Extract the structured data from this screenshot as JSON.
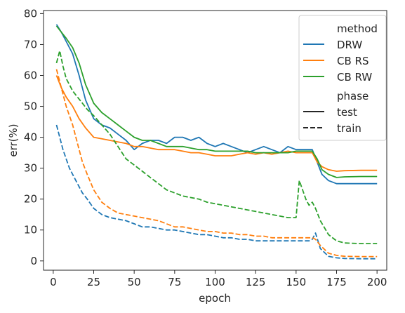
{
  "chart_data": {
    "type": "line",
    "xlabel": "epoch",
    "ylabel": "err(%)",
    "xlim": [
      -6,
      206
    ],
    "ylim": [
      -3,
      81
    ],
    "xticks": [
      0,
      25,
      50,
      75,
      100,
      125,
      150,
      175,
      200
    ],
    "yticks": [
      0,
      10,
      20,
      30,
      40,
      50,
      60,
      70,
      80
    ],
    "grid": false,
    "legend": {
      "placement": "top-right",
      "hue_title": "method",
      "style_title": "phase",
      "methods": [
        {
          "name": "DRW",
          "color": "#1f77b4"
        },
        {
          "name": "CB RS",
          "color": "#ff7f0e"
        },
        {
          "name": "CB RW",
          "color": "#2ca02c"
        }
      ],
      "phases": [
        {
          "name": "test",
          "dash": "solid"
        },
        {
          "name": "train",
          "dash": "dashed"
        }
      ]
    },
    "series": [
      {
        "method": "DRW",
        "phase": "test",
        "color": "#1f77b4",
        "dash": "solid",
        "x": [
          2,
          5,
          8,
          12,
          16,
          20,
          25,
          30,
          35,
          40,
          45,
          50,
          55,
          60,
          65,
          70,
          75,
          80,
          85,
          90,
          95,
          100,
          105,
          110,
          115,
          120,
          125,
          130,
          135,
          140,
          145,
          150,
          155,
          160,
          163,
          166,
          170,
          175,
          180,
          190,
          200
        ],
        "y": [
          76.5,
          74,
          71,
          67,
          60,
          52,
          46,
          44,
          43,
          41,
          39,
          36,
          38,
          39,
          39,
          38,
          40,
          40,
          39,
          40,
          38,
          37,
          38,
          37,
          36,
          35,
          36,
          37,
          36,
          35,
          37,
          36,
          36,
          36,
          32,
          28,
          26,
          25,
          25,
          25,
          25
        ]
      },
      {
        "method": "CB RS",
        "phase": "test",
        "color": "#ff7f0e",
        "dash": "solid",
        "x": [
          2,
          5,
          8,
          12,
          16,
          20,
          25,
          30,
          35,
          40,
          45,
          50,
          55,
          60,
          65,
          70,
          75,
          80,
          85,
          90,
          95,
          100,
          105,
          110,
          115,
          120,
          125,
          130,
          135,
          140,
          145,
          150,
          155,
          160,
          163,
          166,
          170,
          175,
          180,
          190,
          200
        ],
        "y": [
          60,
          56,
          53,
          50,
          46,
          43,
          40,
          39.5,
          39,
          38.5,
          38,
          37,
          37,
          36.5,
          36,
          36,
          36,
          35.5,
          35,
          35,
          34.5,
          34,
          34,
          34,
          34.5,
          35,
          34.5,
          35,
          34.5,
          35,
          35.5,
          35,
          35,
          35,
          32,
          30.5,
          29.5,
          29,
          29.2,
          29.3,
          29.3
        ]
      },
      {
        "method": "CB RW",
        "phase": "test",
        "color": "#2ca02c",
        "dash": "solid",
        "x": [
          2,
          5,
          8,
          12,
          16,
          20,
          25,
          30,
          35,
          40,
          45,
          50,
          55,
          60,
          65,
          70,
          75,
          80,
          85,
          90,
          95,
          100,
          105,
          110,
          115,
          120,
          125,
          130,
          135,
          140,
          145,
          150,
          155,
          160,
          163,
          166,
          170,
          175,
          180,
          190,
          200
        ],
        "y": [
          76,
          74,
          72,
          69,
          64,
          57,
          51,
          48,
          46,
          44,
          42,
          40,
          39,
          39,
          38,
          37,
          37,
          37,
          36.5,
          36,
          36,
          35.5,
          35.5,
          35.5,
          35.5,
          35.5,
          35,
          35,
          35,
          35,
          35,
          35.5,
          35.5,
          35.5,
          33,
          29.5,
          28,
          27,
          27.2,
          27.3,
          27.3
        ]
      },
      {
        "method": "DRW",
        "phase": "train",
        "color": "#1f77b4",
        "dash": "dashed",
        "x": [
          2,
          4,
          6,
          8,
          10,
          12,
          15,
          18,
          21,
          25,
          30,
          35,
          40,
          45,
          50,
          55,
          60,
          65,
          70,
          75,
          80,
          85,
          90,
          95,
          100,
          105,
          110,
          115,
          120,
          125,
          130,
          135,
          140,
          145,
          150,
          155,
          158,
          160,
          162,
          165,
          170,
          175,
          180,
          190,
          200
        ],
        "y": [
          44,
          40,
          36,
          33,
          30,
          28,
          25,
          22,
          20,
          17,
          15,
          14,
          13.5,
          13,
          12,
          11,
          11,
          10.5,
          10,
          10,
          9.5,
          9,
          8.5,
          8.5,
          8,
          7.5,
          7.5,
          7,
          7,
          6.5,
          6.5,
          6.5,
          6.5,
          6.5,
          6.5,
          6.5,
          6.5,
          7,
          9,
          4,
          1.5,
          1,
          0.8,
          0.7,
          0.7
        ]
      },
      {
        "method": "CB RS",
        "phase": "train",
        "color": "#ff7f0e",
        "dash": "dashed",
        "x": [
          2,
          4,
          6,
          8,
          10,
          12,
          15,
          18,
          21,
          25,
          30,
          35,
          40,
          45,
          50,
          55,
          60,
          65,
          70,
          75,
          80,
          85,
          90,
          95,
          100,
          105,
          110,
          115,
          120,
          125,
          130,
          135,
          140,
          145,
          150,
          155,
          158,
          160,
          162,
          165,
          170,
          175,
          180,
          190,
          200
        ],
        "y": [
          62,
          58,
          54,
          50,
          47,
          44,
          38,
          32,
          28,
          23,
          19,
          17,
          15.5,
          15,
          14.5,
          14,
          13.5,
          13,
          12,
          11,
          11,
          10.5,
          10,
          9.5,
          9.5,
          9,
          9,
          8.5,
          8.5,
          8,
          8,
          7.5,
          7.5,
          7.5,
          7.5,
          7.5,
          7.5,
          7.5,
          7,
          5,
          2.5,
          1.8,
          1.5,
          1.4,
          1.4
        ]
      },
      {
        "method": "CB RW",
        "phase": "train",
        "color": "#2ca02c",
        "dash": "dashed",
        "x": [
          2,
          4,
          6,
          8,
          10,
          12,
          15,
          18,
          21,
          25,
          30,
          35,
          40,
          45,
          50,
          55,
          60,
          65,
          70,
          75,
          80,
          85,
          90,
          95,
          100,
          105,
          110,
          115,
          120,
          125,
          130,
          135,
          140,
          145,
          150,
          152,
          154,
          156,
          158,
          160,
          162,
          165,
          170,
          175,
          180,
          190,
          200
        ],
        "y": [
          64,
          68,
          63,
          59,
          57,
          55,
          53,
          51,
          49,
          47,
          44,
          41,
          37,
          33,
          31,
          29,
          27,
          25,
          23,
          22,
          21,
          20.5,
          20,
          19,
          18.5,
          18,
          17.5,
          17,
          16.5,
          16,
          15.5,
          15,
          14.5,
          14,
          14,
          26,
          23,
          20,
          18,
          19,
          17,
          13,
          8.5,
          6.5,
          5.8,
          5.6,
          5.6
        ]
      }
    ]
  }
}
